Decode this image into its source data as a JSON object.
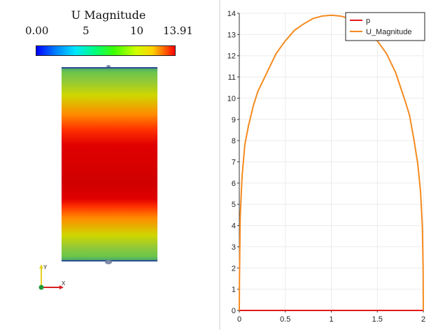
{
  "render_view": {
    "colorbar": {
      "title": "U Magnitude",
      "ticks": [
        "0.00",
        "5",
        "10",
        "13.91"
      ],
      "range": [
        0,
        13.91
      ]
    },
    "orientation_axes": {
      "x_label": "X",
      "y_label": "Y"
    }
  },
  "chart_data": {
    "type": "line",
    "title": "",
    "xlabel": "",
    "ylabel": "",
    "xlim": [
      0,
      2
    ],
    "ylim": [
      0,
      14
    ],
    "x_ticks": [
      "0",
      "0.5",
      "1",
      "1.5",
      "2"
    ],
    "y_ticks": [
      "0",
      "1",
      "2",
      "3",
      "4",
      "5",
      "6",
      "7",
      "8",
      "9",
      "10",
      "11",
      "12",
      "13",
      "14"
    ],
    "grid": true,
    "legend": "top-right",
    "series": [
      {
        "name": "p",
        "color": "#e41a1c",
        "x": [
          0,
          2
        ],
        "y": [
          0,
          0
        ]
      },
      {
        "name": "U_Magnitude",
        "color": "#f58a1f",
        "x": [
          0,
          0.002,
          0.01,
          0.03,
          0.06,
          0.1,
          0.15,
          0.2,
          0.3,
          0.4,
          0.5,
          0.6,
          0.7,
          0.8,
          0.9,
          1.0,
          1.1,
          1.2,
          1.3,
          1.4,
          1.5,
          1.6,
          1.7,
          1.8,
          1.85,
          1.9,
          1.94,
          1.97,
          1.99,
          1.998,
          2
        ],
        "y": [
          0,
          1.5,
          4.4,
          6.3,
          7.8,
          8.7,
          9.6,
          10.3,
          11.2,
          12.1,
          12.7,
          13.2,
          13.5,
          13.75,
          13.87,
          13.91,
          13.87,
          13.75,
          13.5,
          13.2,
          12.7,
          12.1,
          11.2,
          9.9,
          9.2,
          8.0,
          6.9,
          5.6,
          3.9,
          2.0,
          0
        ]
      }
    ]
  }
}
